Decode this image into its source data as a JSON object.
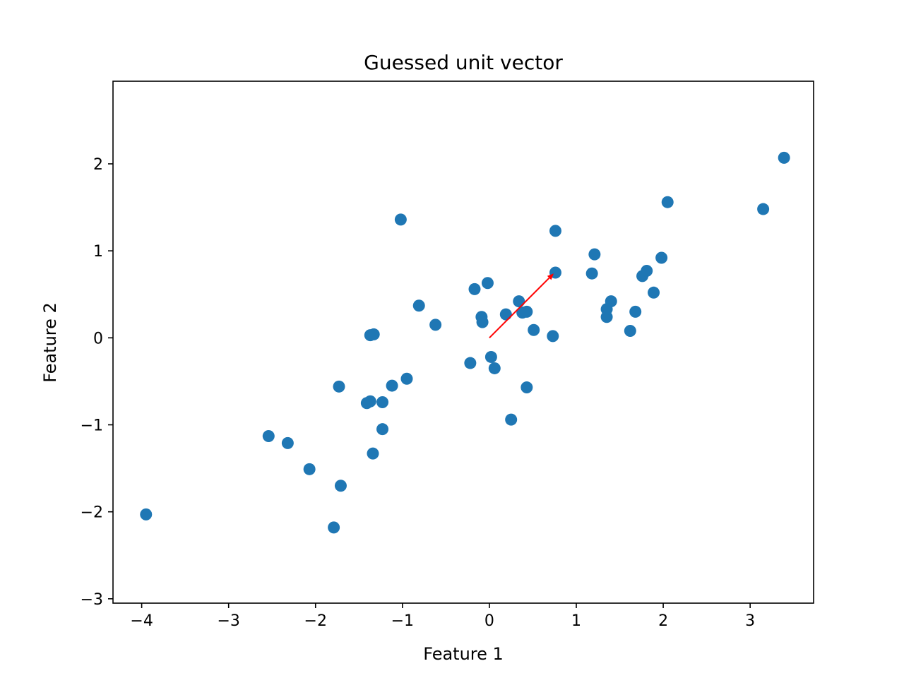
{
  "chart_data": {
    "type": "scatter",
    "title": "Guessed unit vector",
    "xlabel": "Feature 1",
    "ylabel": "Feature 2",
    "xlim": [
      -4.33,
      3.73
    ],
    "ylim": [
      -3.05,
      2.95
    ],
    "xticks": [
      -4,
      -3,
      -2,
      -1,
      0,
      1,
      2,
      3
    ],
    "xtick_labels": [
      "−4",
      "−3",
      "−2",
      "−1",
      "0",
      "1",
      "2",
      "3"
    ],
    "yticks": [
      -3,
      -2,
      -1,
      0,
      1,
      2
    ],
    "ytick_labels": [
      "−3",
      "−2",
      "−1",
      "0",
      "1",
      "2"
    ],
    "grid": false,
    "legend": "none",
    "series": [
      {
        "marker_color": "#1f77b4",
        "points": [
          [
            -3.95,
            -2.03
          ],
          [
            -2.54,
            -1.13
          ],
          [
            -2.32,
            -1.21
          ],
          [
            -2.07,
            -1.51
          ],
          [
            -1.79,
            -2.18
          ],
          [
            -1.71,
            -1.7
          ],
          [
            -1.73,
            -0.56
          ],
          [
            -1.41,
            -0.75
          ],
          [
            -1.37,
            -0.73
          ],
          [
            -1.34,
            -1.33
          ],
          [
            -1.37,
            0.03
          ],
          [
            -1.33,
            0.04
          ],
          [
            -1.23,
            -0.74
          ],
          [
            -1.23,
            -1.05
          ],
          [
            -1.12,
            -0.55
          ],
          [
            -1.02,
            1.36
          ],
          [
            -0.95,
            -0.47
          ],
          [
            -0.81,
            0.37
          ],
          [
            -0.62,
            0.15
          ],
          [
            -0.22,
            -0.29
          ],
          [
            -0.17,
            0.56
          ],
          [
            -0.09,
            0.24
          ],
          [
            -0.08,
            0.18
          ],
          [
            -0.02,
            0.63
          ],
          [
            0.02,
            -0.22
          ],
          [
            0.06,
            -0.35
          ],
          [
            0.19,
            0.27
          ],
          [
            0.25,
            -0.94
          ],
          [
            0.34,
            0.42
          ],
          [
            0.38,
            0.29
          ],
          [
            0.43,
            0.3
          ],
          [
            0.43,
            -0.57
          ],
          [
            0.51,
            0.09
          ],
          [
            0.73,
            0.02
          ],
          [
            0.76,
            1.23
          ],
          [
            0.76,
            0.75
          ],
          [
            1.18,
            0.74
          ],
          [
            1.21,
            0.96
          ],
          [
            1.35,
            0.24
          ],
          [
            1.35,
            0.33
          ],
          [
            1.4,
            0.42
          ],
          [
            1.62,
            0.08
          ],
          [
            1.68,
            0.3
          ],
          [
            1.76,
            0.71
          ],
          [
            1.81,
            0.77
          ],
          [
            1.89,
            0.52
          ],
          [
            1.98,
            0.92
          ],
          [
            2.05,
            1.56
          ],
          [
            3.15,
            1.48
          ],
          [
            3.39,
            2.07
          ]
        ]
      }
    ],
    "annotations": [
      {
        "type": "arrow",
        "from": [
          0,
          0
        ],
        "to": [
          0.74,
          0.74
        ],
        "color": "#ff0000"
      }
    ]
  }
}
